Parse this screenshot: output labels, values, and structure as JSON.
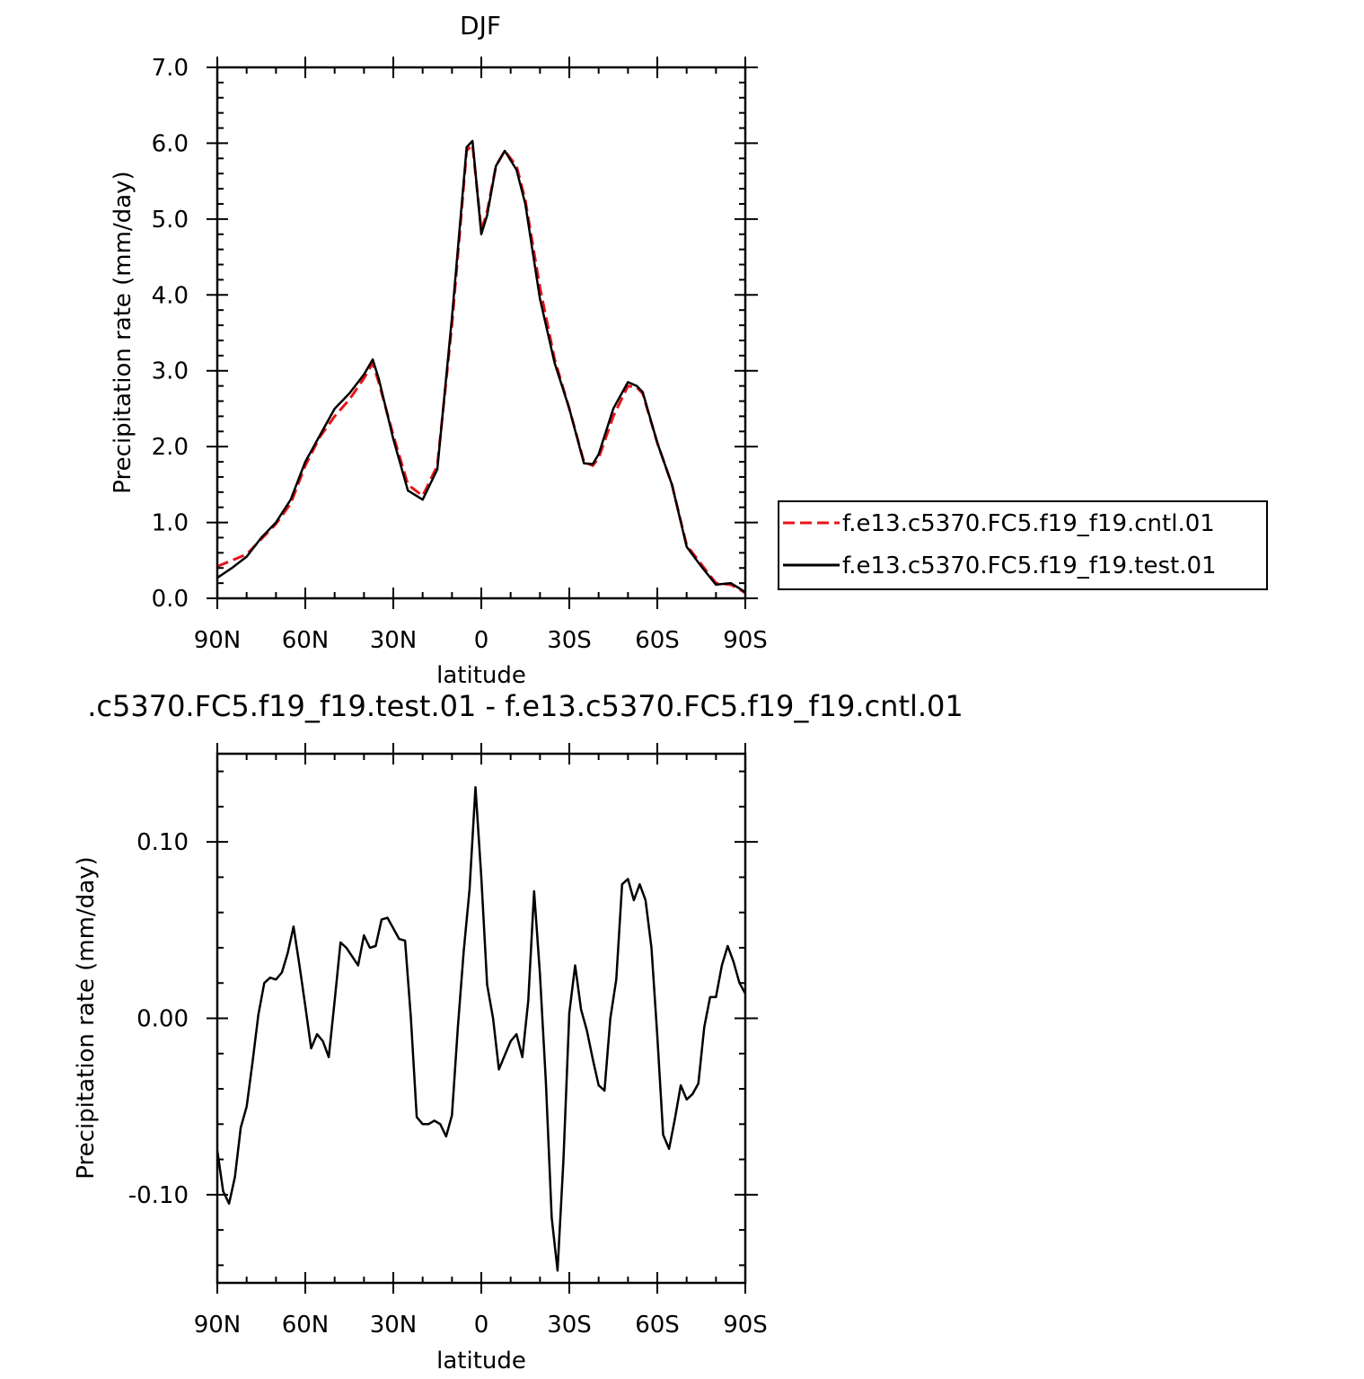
{
  "chart_data": [
    {
      "type": "line",
      "title": "DJF",
      "xlabel": "latitude",
      "ylabel": "Precipitation rate (mm/day)",
      "xlim": [
        -90,
        90
      ],
      "ylim": [
        0,
        7
      ],
      "x_ticks": [
        -90,
        -60,
        -30,
        0,
        30,
        60,
        90
      ],
      "x_tick_labels": [
        "90N",
        "60N",
        "30N",
        "0",
        "30S",
        "60S",
        "90S"
      ],
      "y_ticks": [
        0,
        1,
        2,
        3,
        4,
        5,
        6,
        7
      ],
      "y_tick_labels": [
        "0.0",
        "1.0",
        "2.0",
        "3.0",
        "4.0",
        "5.0",
        "6.0",
        "7.0"
      ],
      "legend": {
        "placement": "right"
      },
      "series": [
        {
          "name": "f.e13.c5370.FC5.f19_f19.cntl.01",
          "color": "#e8141a",
          "dash": true,
          "x": [
            -90,
            -85,
            -80,
            -75,
            -70,
            -65,
            -60,
            -55,
            -50,
            -45,
            -40,
            -37,
            -35,
            -30,
            -25,
            -20,
            -15,
            -10,
            -5,
            -3,
            0,
            2,
            5,
            8,
            12,
            15,
            20,
            25,
            30,
            35,
            38,
            40,
            45,
            50,
            53,
            55,
            60,
            65,
            70,
            75,
            80,
            85,
            88,
            90
          ],
          "y": [
            0.42,
            0.5,
            0.58,
            0.78,
            0.98,
            1.25,
            1.75,
            2.13,
            2.4,
            2.62,
            2.9,
            3.1,
            2.85,
            2.15,
            1.5,
            1.35,
            1.75,
            3.6,
            5.9,
            5.98,
            4.85,
            5.1,
            5.7,
            5.9,
            5.7,
            5.25,
            4.1,
            3.15,
            2.5,
            1.8,
            1.75,
            1.85,
            2.4,
            2.8,
            2.78,
            2.7,
            2.05,
            1.5,
            0.7,
            0.45,
            0.2,
            0.18,
            0.12,
            0.07
          ]
        },
        {
          "name": "f.e13.c5370.FC5.f19_f19.test.01",
          "color": "#000000",
          "dash": false,
          "x": [
            -90,
            -85,
            -80,
            -75,
            -70,
            -65,
            -60,
            -55,
            -50,
            -45,
            -40,
            -37,
            -35,
            -30,
            -25,
            -20,
            -15,
            -10,
            -5,
            -3,
            0,
            2,
            5,
            8,
            12,
            15,
            20,
            25,
            30,
            35,
            38,
            40,
            45,
            50,
            53,
            55,
            60,
            65,
            70,
            75,
            80,
            85,
            88,
            90
          ],
          "y": [
            0.27,
            0.4,
            0.55,
            0.8,
            1.0,
            1.3,
            1.8,
            2.15,
            2.5,
            2.7,
            2.95,
            3.15,
            2.9,
            2.1,
            1.42,
            1.3,
            1.7,
            3.7,
            5.95,
            6.03,
            4.8,
            5.05,
            5.7,
            5.9,
            5.65,
            5.2,
            3.95,
            3.1,
            2.5,
            1.78,
            1.77,
            1.9,
            2.5,
            2.85,
            2.8,
            2.72,
            2.05,
            1.5,
            0.68,
            0.42,
            0.18,
            0.2,
            0.13,
            0.08
          ]
        }
      ]
    },
    {
      "type": "line",
      "title": ".c5370.FC5.f19_f19.test.01 - f.e13.c5370.FC5.f19_f19.cntl.01",
      "xlabel": "latitude",
      "ylabel": "Precipitation rate (mm/day)",
      "xlim": [
        -90,
        90
      ],
      "ylim": [
        -0.15,
        0.15
      ],
      "x_ticks": [
        -90,
        -60,
        -30,
        0,
        30,
        60,
        90
      ],
      "x_tick_labels": [
        "90N",
        "60N",
        "30N",
        "0",
        "30S",
        "60S",
        "90S"
      ],
      "y_ticks": [
        -0.1,
        0,
        0.1
      ],
      "y_tick_labels": [
        "-0.10",
        "0.00",
        "0.10"
      ],
      "series": [
        {
          "color": "#000000",
          "dash": false,
          "x": [
            -90,
            -88,
            -86,
            -84,
            -82,
            -80,
            -78,
            -76,
            -74,
            -72,
            -70,
            -68,
            -66,
            -64,
            -62,
            -60,
            -58,
            -56,
            -54,
            -52,
            -50,
            -48,
            -46,
            -44,
            -42,
            -40,
            -38,
            -36,
            -34,
            -32,
            -30,
            -28,
            -26,
            -24,
            -22,
            -20,
            -18,
            -16,
            -14,
            -12,
            -10,
            -8,
            -6,
            -4,
            -2,
            0,
            2,
            4,
            6,
            8,
            10,
            12,
            14,
            16,
            18,
            20,
            22,
            24,
            26,
            28,
            30,
            32,
            34,
            36,
            38,
            40,
            42,
            44,
            46,
            48,
            50,
            52,
            54,
            56,
            58,
            60,
            62,
            64,
            66,
            68,
            70,
            72,
            74,
            76,
            78,
            80,
            82,
            84,
            86,
            88,
            90
          ],
          "y": [
            -0.075,
            -0.098,
            -0.105,
            -0.09,
            -0.062,
            -0.05,
            -0.025,
            0.002,
            0.02,
            0.023,
            0.022,
            0.026,
            0.037,
            0.052,
            0.03,
            0.007,
            -0.017,
            -0.009,
            -0.013,
            -0.022,
            0.01,
            0.043,
            0.04,
            0.035,
            0.03,
            0.047,
            0.04,
            0.041,
            0.056,
            0.057,
            0.051,
            0.045,
            0.044,
            0.0,
            -0.056,
            -0.06,
            -0.06,
            -0.058,
            -0.06,
            -0.067,
            -0.055,
            -0.005,
            0.038,
            0.073,
            0.131,
            0.08,
            0.019,
            0.0,
            -0.029,
            -0.021,
            -0.013,
            -0.009,
            -0.022,
            0.01,
            0.072,
            0.025,
            -0.036,
            -0.113,
            -0.143,
            -0.08,
            0.003,
            0.03,
            0.005,
            -0.007,
            -0.023,
            -0.038,
            -0.041,
            0.0,
            0.022,
            0.076,
            0.079,
            0.067,
            0.076,
            0.067,
            0.04,
            -0.01,
            -0.066,
            -0.074,
            -0.057,
            -0.038,
            -0.046,
            -0.043,
            -0.037,
            -0.005,
            0.012,
            0.012,
            0.03,
            0.041,
            0.032,
            0.02,
            0.014
          ]
        }
      ]
    }
  ]
}
